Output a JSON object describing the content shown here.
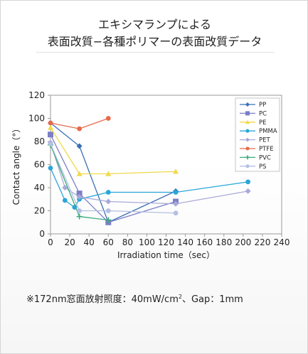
{
  "header": {
    "title_line1": "エキシマランプによる",
    "title_line2": "表面改質−各種ポリマーの表面改質データ"
  },
  "footnote": {
    "prefix": "※172nm窓面放射照度：40mW/cm",
    "sup": "2",
    "suffix": "、Gap：1mm"
  },
  "chart_data": {
    "type": "line",
    "xlabel": "Irradiation time（sec）",
    "ylabel": "Contact angle（°）",
    "xlim": [
      0,
      240
    ],
    "ylim": [
      0,
      120
    ],
    "xticks": [
      0,
      20,
      40,
      60,
      80,
      100,
      120,
      140,
      160,
      180,
      200,
      220,
      240
    ],
    "yticks": [
      0,
      20,
      40,
      60,
      80,
      100,
      120
    ],
    "grid": false,
    "legend_position": "top-right",
    "series": [
      {
        "name": "PP",
        "color": "#3a6fb5",
        "marker": "diamond",
        "points": [
          [
            0,
            96
          ],
          [
            30,
            76
          ],
          [
            60,
            10
          ],
          [
            130,
            37
          ]
        ]
      },
      {
        "name": "PC",
        "color": "#7b7fc7",
        "marker": "square",
        "points": [
          [
            0,
            86
          ],
          [
            30,
            35
          ],
          [
            60,
            10
          ],
          [
            130,
            28
          ]
        ]
      },
      {
        "name": "PE",
        "color": "#f0d94a",
        "marker": "triangle",
        "points": [
          [
            0,
            92
          ],
          [
            30,
            52
          ],
          [
            60,
            52
          ],
          [
            130,
            54
          ]
        ]
      },
      {
        "name": "PMMA",
        "color": "#29a6d9",
        "marker": "circle",
        "points": [
          [
            0,
            57
          ],
          [
            15,
            29
          ],
          [
            25,
            23
          ],
          [
            30,
            30
          ],
          [
            60,
            36
          ],
          [
            130,
            36
          ],
          [
            205,
            45
          ]
        ]
      },
      {
        "name": "PET",
        "color": "#a8a9d8",
        "marker": "diamond",
        "points": [
          [
            0,
            79
          ],
          [
            15,
            40
          ],
          [
            30,
            32
          ],
          [
            60,
            28
          ],
          [
            130,
            26
          ],
          [
            205,
            37
          ]
        ]
      },
      {
        "name": "PTFE",
        "color": "#e8694a",
        "marker": "circle",
        "points": [
          [
            0,
            96
          ],
          [
            30,
            91
          ],
          [
            60,
            100
          ]
        ]
      },
      {
        "name": "PVC",
        "color": "#3aaa7a",
        "marker": "cross",
        "points": [
          [
            0,
            77
          ],
          [
            30,
            15
          ],
          [
            60,
            12
          ]
        ]
      },
      {
        "name": "PS",
        "color": "#b4bfe4",
        "marker": "circle",
        "points": [
          [
            0,
            78
          ],
          [
            30,
            20
          ],
          [
            60,
            20
          ],
          [
            130,
            18
          ]
        ]
      }
    ]
  }
}
